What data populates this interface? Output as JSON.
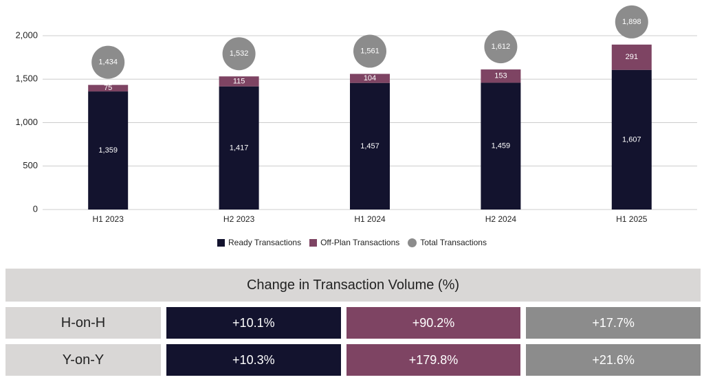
{
  "colors": {
    "ready": "#13132e",
    "offplan": "#7e4463",
    "total": "#8c8c8c",
    "grid": "#cccccc",
    "label_bg": "#d9d7d6"
  },
  "chart_data": {
    "type": "bar",
    "stacked": true,
    "categories": [
      "H1 2023",
      "H2 2023",
      "H1 2024",
      "H2 2024",
      "H1 2025"
    ],
    "series": [
      {
        "name": "Ready Transactions",
        "values": [
          1359,
          1417,
          1457,
          1459,
          1607
        ]
      },
      {
        "name": "Off-Plan Transactions",
        "values": [
          75,
          115,
          104,
          153,
          291
        ]
      }
    ],
    "totals": {
      "name": "Total Transactions",
      "values": [
        1434,
        1532,
        1561,
        1612,
        1898
      ],
      "labels": [
        "1,434",
        "1,532",
        "1,561",
        "1,612",
        "1,898"
      ]
    },
    "ready_labels": [
      "1,359",
      "1,417",
      "1,457",
      "1,459",
      "1,607"
    ],
    "offplan_labels": [
      "75",
      "115",
      "104",
      "153",
      "291"
    ],
    "yticks": [
      0,
      500,
      1000,
      1500,
      2000
    ],
    "ytick_labels": [
      "0",
      "500",
      "1,000",
      "1,500",
      "2,000"
    ],
    "ylim": [
      0,
      2000
    ],
    "grid": true,
    "legend_position": "bottom"
  },
  "legend": {
    "ready": "Ready Transactions",
    "offplan": "Off-Plan Transactions",
    "total": "Total Transactions"
  },
  "table": {
    "title": "Change in Transaction Volume (%)",
    "rows": [
      {
        "label": "H-on-H",
        "ready": "+10.1%",
        "offplan": "+90.2%",
        "total": "+17.7%"
      },
      {
        "label": "Y-on-Y",
        "ready": "+10.3%",
        "offplan": "+179.8%",
        "total": "+21.6%"
      }
    ]
  }
}
